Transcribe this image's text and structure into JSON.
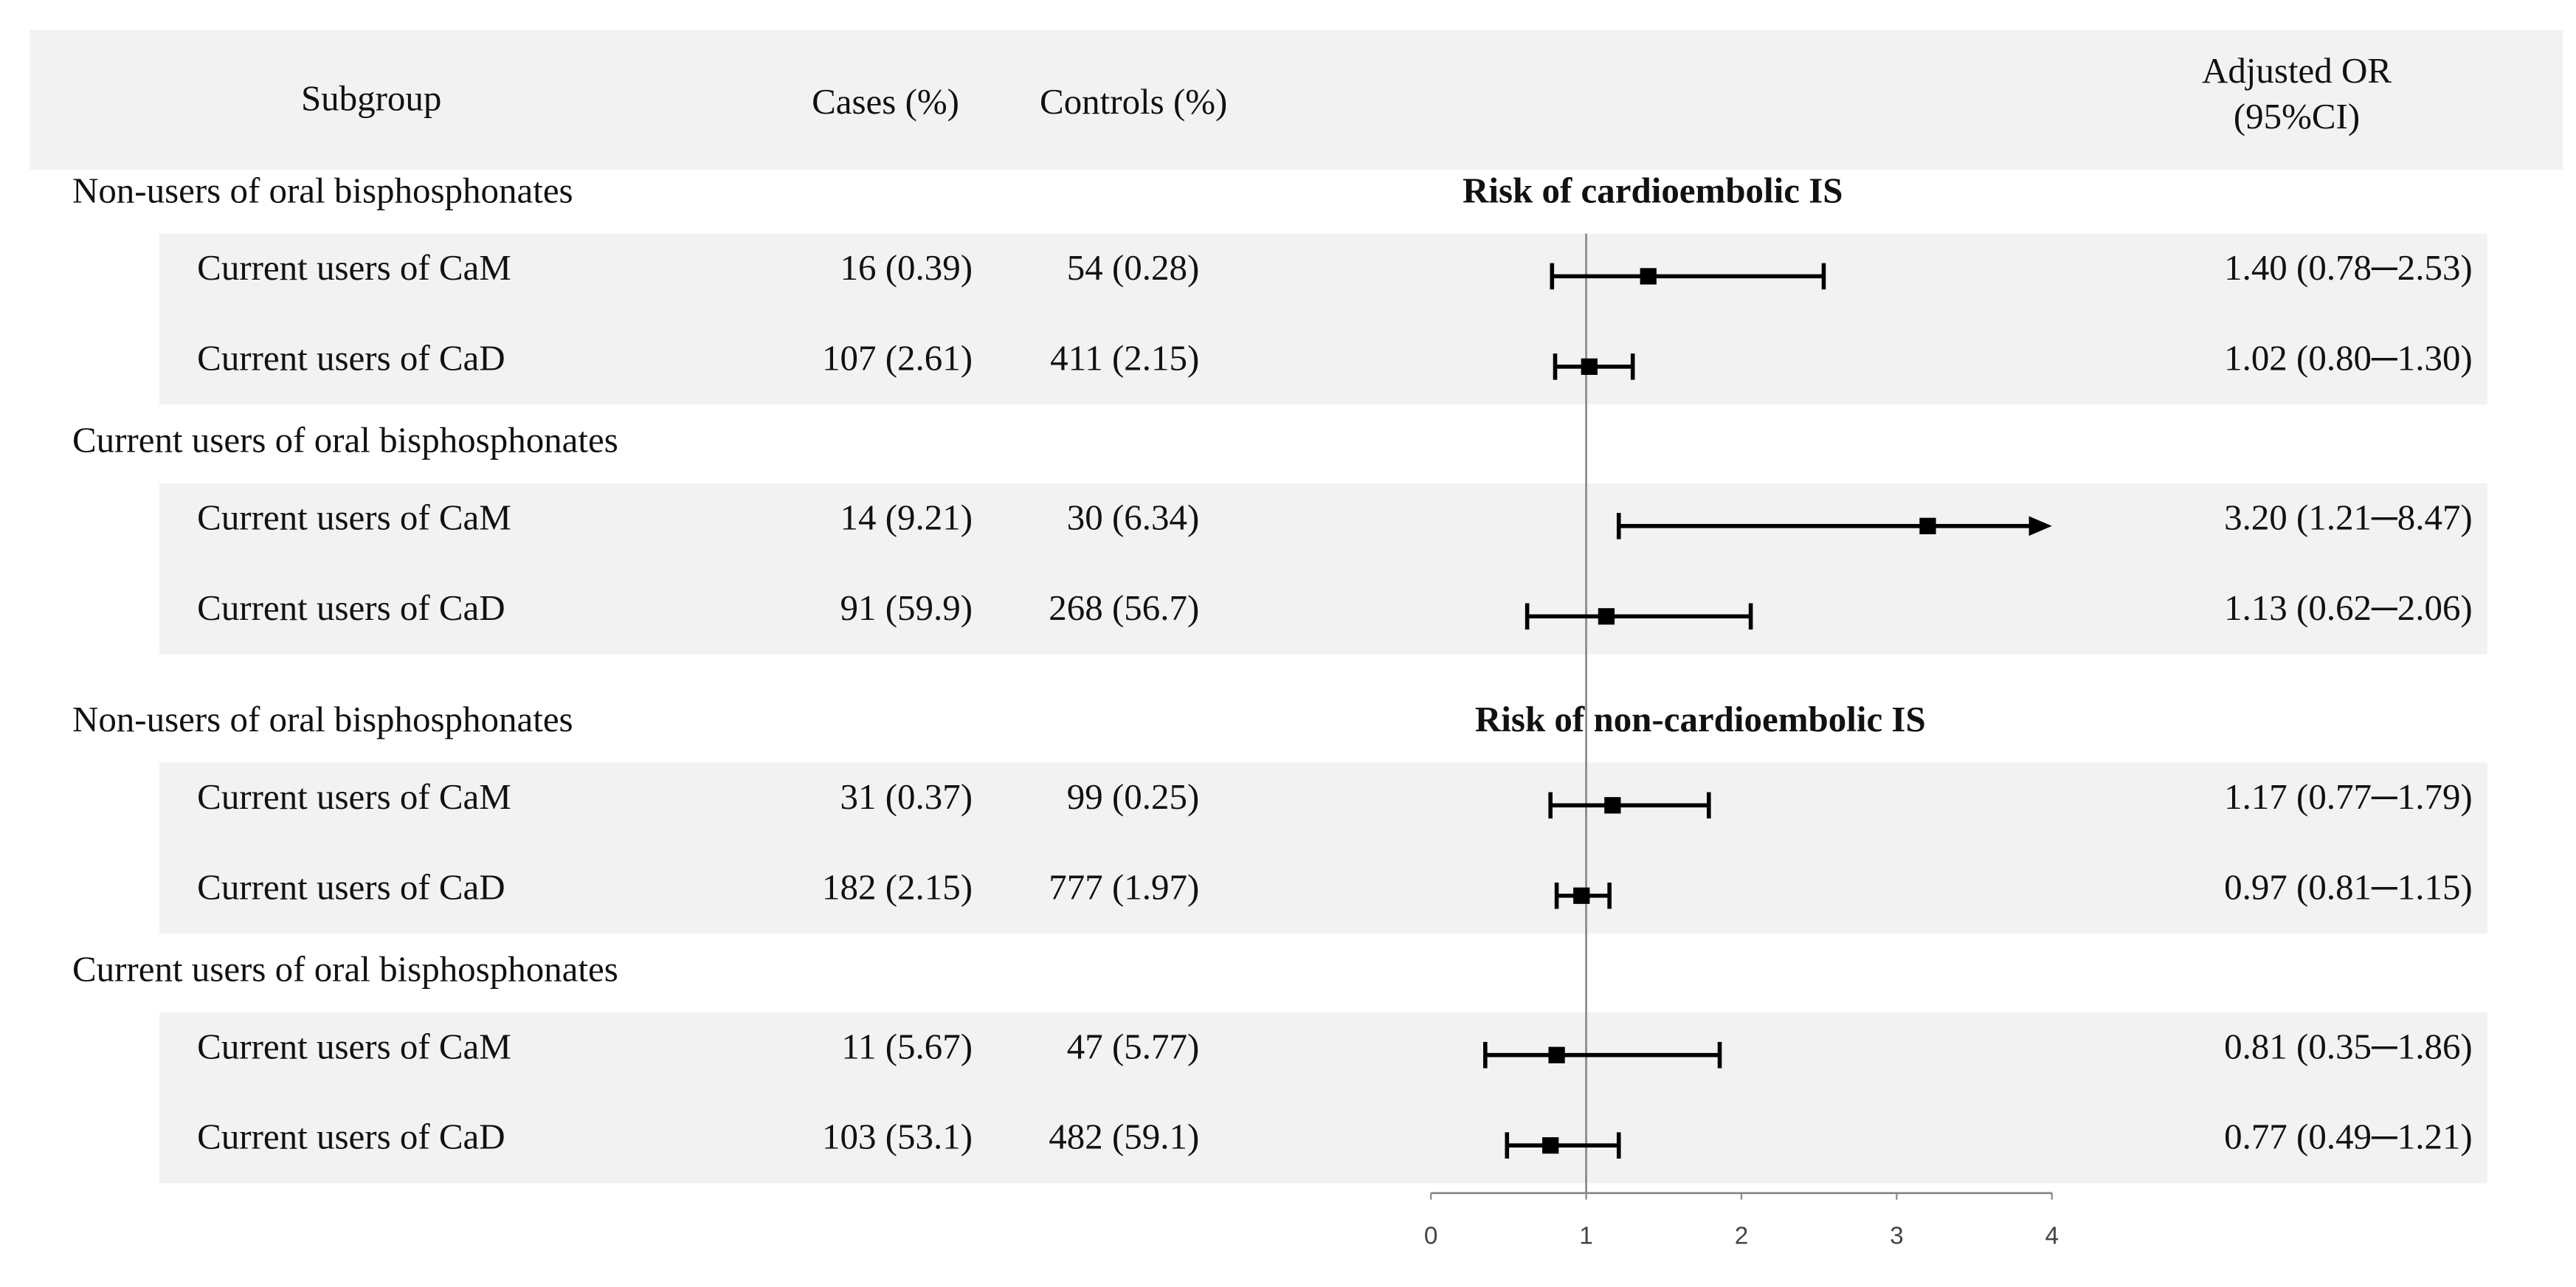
{
  "chart_data": {
    "type": "forest",
    "headers": {
      "subgroup": "Subgroup",
      "cases": "Cases (%)",
      "controls": "Controls (%)",
      "or": [
        "Adjusted OR",
        "(95%CI)"
      ]
    },
    "xlim": [
      0,
      4
    ],
    "xticks": [
      0,
      1,
      2,
      3,
      4
    ],
    "reference": 1,
    "panels": [
      {
        "title": "Risk of cardioembolic IS",
        "groups": [
          {
            "name": "Non-users of oral bisphosphonates",
            "rows": [
              {
                "label": "Current users of CaM",
                "cases": "16 (0.39)",
                "controls": "54 (0.28)",
                "or": 1.4,
                "lower": 0.78,
                "upper": 2.53,
                "or_label": "1.40 (0.78─2.53)"
              },
              {
                "label": "Current users of CaD",
                "cases": "107 (2.61)",
                "controls": "411 (2.15)",
                "or": 1.02,
                "lower": 0.8,
                "upper": 1.3,
                "or_label": "1.02 (0.80─1.30)"
              }
            ]
          },
          {
            "name": "Current users of oral bisphosphonates",
            "rows": [
              {
                "label": "Current users of CaM",
                "cases": "14 (9.21)",
                "controls": "30 (6.34)",
                "or": 3.2,
                "lower": 1.21,
                "upper": 8.47,
                "or_label": "3.20 (1.21─8.47)"
              },
              {
                "label": "Current users of CaD",
                "cases": "91 (59.9)",
                "controls": "268 (56.7)",
                "or": 1.13,
                "lower": 0.62,
                "upper": 2.06,
                "or_label": "1.13 (0.62─2.06)"
              }
            ]
          }
        ]
      },
      {
        "title": "Risk of non-cardioembolic IS",
        "groups": [
          {
            "name": "Non-users of oral bisphosphonates",
            "rows": [
              {
                "label": "Current users of CaM",
                "cases": "31 (0.37)",
                "controls": "99 (0.25)",
                "or": 1.17,
                "lower": 0.77,
                "upper": 1.79,
                "or_label": "1.17 (0.77─1.79)"
              },
              {
                "label": "Current users of CaD",
                "cases": "182 (2.15)",
                "controls": "777 (1.97)",
                "or": 0.97,
                "lower": 0.81,
                "upper": 1.15,
                "or_label": "0.97 (0.81─1.15)"
              }
            ]
          },
          {
            "name": "Current users of oral bisphosphonates",
            "rows": [
              {
                "label": "Current users of CaM",
                "cases": "11 (5.67)",
                "controls": "47 (5.77)",
                "or": 0.81,
                "lower": 0.35,
                "upper": 1.86,
                "or_label": "0.81 (0.35─1.86)"
              },
              {
                "label": "Current users of CaD",
                "cases": "103 (53.1)",
                "controls": "482 (59.1)",
                "or": 0.77,
                "lower": 0.49,
                "upper": 1.21,
                "or_label": "0.77 (0.49─1.21)"
              }
            ]
          }
        ]
      }
    ]
  }
}
